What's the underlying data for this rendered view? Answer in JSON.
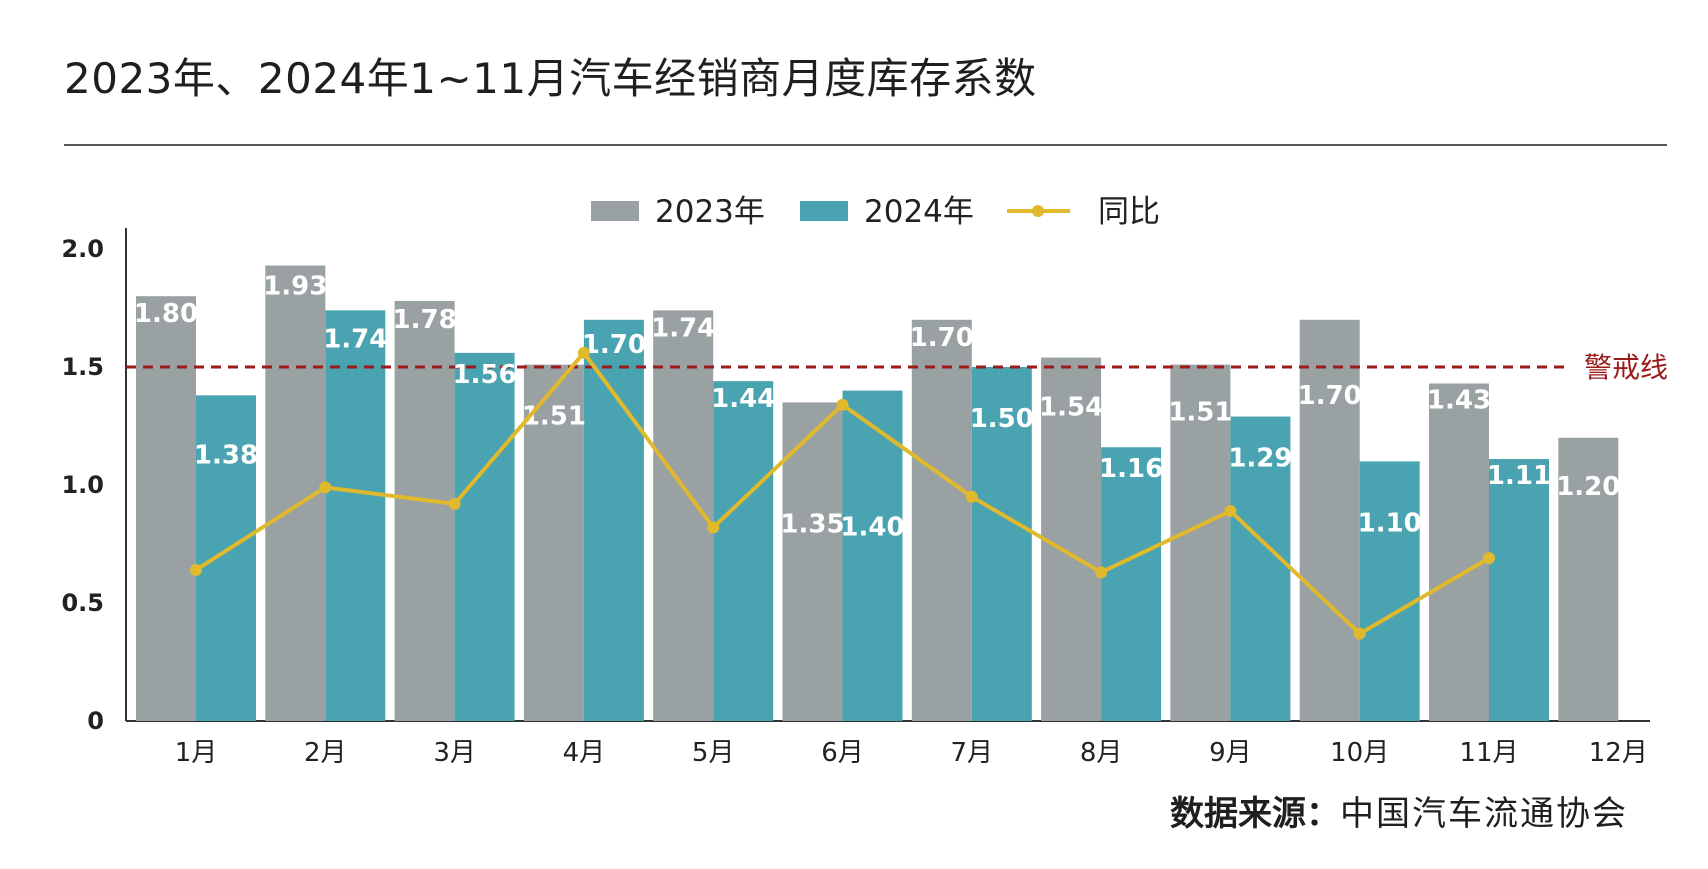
{
  "title": "2023年、2024年1~11月汽车经销商月度库存系数",
  "source": {
    "label": "数据来源：",
    "org": "中国汽车流通协会"
  },
  "colors": {
    "series_2023": "#9aa1a3",
    "series_2024": "#4aa3b0",
    "series_yoy": "#e0b92c",
    "threshold": "#9b1b1b",
    "axis": "#333333"
  },
  "chart_data": {
    "type": "bar",
    "categories": [
      "1月",
      "2月",
      "3月",
      "4月",
      "5月",
      "6月",
      "7月",
      "8月",
      "9月",
      "10月",
      "11月",
      "12月"
    ],
    "series": [
      {
        "name": "2023年",
        "type": "bar",
        "values": [
          1.8,
          1.93,
          1.78,
          1.51,
          1.74,
          1.35,
          1.7,
          1.54,
          1.51,
          1.7,
          1.43,
          1.2
        ],
        "labels": [
          "1.80",
          "1.93",
          "1.78",
          "1.51",
          "1.74",
          "1.35",
          "1.70",
          "1.54",
          "1.51",
          "1.70",
          "1.43",
          "1.20"
        ]
      },
      {
        "name": "2024年",
        "type": "bar",
        "values": [
          1.38,
          1.74,
          1.56,
          1.7,
          1.44,
          1.4,
          1.5,
          1.16,
          1.29,
          1.1,
          1.11,
          null
        ],
        "labels": [
          "1.38",
          "1.74",
          "1.56",
          "1.70",
          "1.44",
          "1.40",
          "1.50",
          "1.16",
          "1.29",
          "1.10",
          "1.11",
          null
        ]
      },
      {
        "name": "同比",
        "type": "line",
        "values": [
          0.64,
          0.99,
          0.92,
          1.56,
          0.82,
          1.34,
          0.95,
          0.63,
          0.89,
          0.37,
          0.69,
          null
        ]
      }
    ],
    "threshold": {
      "label": "警戒线",
      "value": 1.5
    },
    "yticks": [
      {
        "value": 0,
        "label": "0"
      },
      {
        "value": 0.5,
        "label": "0.5"
      },
      {
        "value": 1.0,
        "label": "1.0"
      },
      {
        "value": 1.5,
        "label": "1.5"
      },
      {
        "value": 2.0,
        "label": "2.0"
      }
    ],
    "ylim": [
      0,
      2.0
    ],
    "legend_position": "top-center",
    "grid": false
  }
}
